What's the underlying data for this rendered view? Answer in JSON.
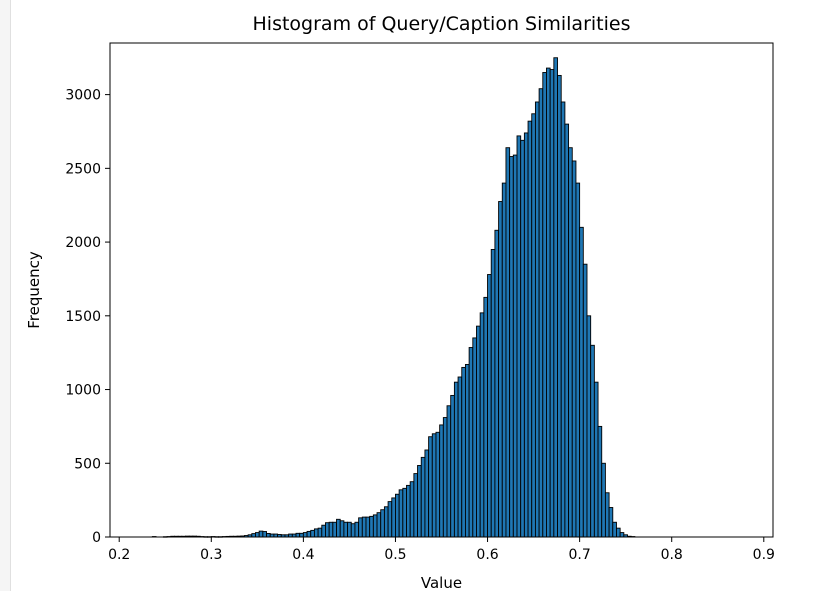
{
  "chart_data": {
    "type": "bar",
    "title": "Histogram of Query/Caption Similarities",
    "xlabel": "Value",
    "ylabel": "Frequency",
    "xlim": [
      0.19,
      0.91
    ],
    "ylim": [
      0,
      3350
    ],
    "x_ticks": [
      0.2,
      0.3,
      0.4,
      0.5,
      0.6,
      0.7,
      0.8,
      0.9
    ],
    "x_tick_labels": [
      "0.2",
      "0.3",
      "0.4",
      "0.5",
      "0.6",
      "0.7",
      "0.8",
      "0.9"
    ],
    "y_ticks": [
      0,
      500,
      1000,
      1500,
      2000,
      2500,
      3000
    ],
    "y_tick_labels": [
      "0",
      "500",
      "1000",
      "1500",
      "2000",
      "2500",
      "3000"
    ],
    "grid": false,
    "bar_color": "#1f77b4",
    "edge_color": "#000000",
    "bin_width": 0.004,
    "bin_start": 0.236,
    "values": [
      3,
      0,
      0,
      2,
      3,
      5,
      5,
      5,
      5,
      6,
      6,
      6,
      5,
      3,
      2,
      2,
      3,
      2,
      2,
      3,
      4,
      5,
      5,
      6,
      7,
      10,
      15,
      23,
      30,
      40,
      37,
      24,
      20,
      20,
      17,
      15,
      15,
      20,
      20,
      25,
      25,
      30,
      38,
      45,
      55,
      60,
      80,
      97,
      100,
      100,
      120,
      110,
      100,
      100,
      90,
      100,
      130,
      135,
      135,
      140,
      150,
      165,
      185,
      205,
      240,
      265,
      290,
      320,
      330,
      350,
      375,
      430,
      485,
      540,
      590,
      680,
      700,
      710,
      760,
      810,
      890,
      960,
      1050,
      1085,
      1150,
      1170,
      1285,
      1350,
      1430,
      1520,
      1625,
      1780,
      1950,
      2080,
      2275,
      2400,
      2640,
      2580,
      2590,
      2720,
      2690,
      2740,
      2820,
      2870,
      2950,
      3040,
      3150,
      3180,
      3170,
      3250,
      3130,
      2950,
      2800,
      2640,
      2550,
      2400,
      2100,
      1850,
      1500,
      1300,
      1050,
      750,
      500,
      300,
      200,
      100,
      60,
      30,
      15,
      5,
      3,
      0,
      0,
      0,
      0,
      0,
      0,
      0,
      0,
      0,
      0,
      0,
      0,
      0,
      0,
      0,
      0,
      0,
      0,
      0,
      0,
      0,
      0,
      0,
      0,
      0,
      0,
      0,
      0,
      0,
      0
    ]
  }
}
